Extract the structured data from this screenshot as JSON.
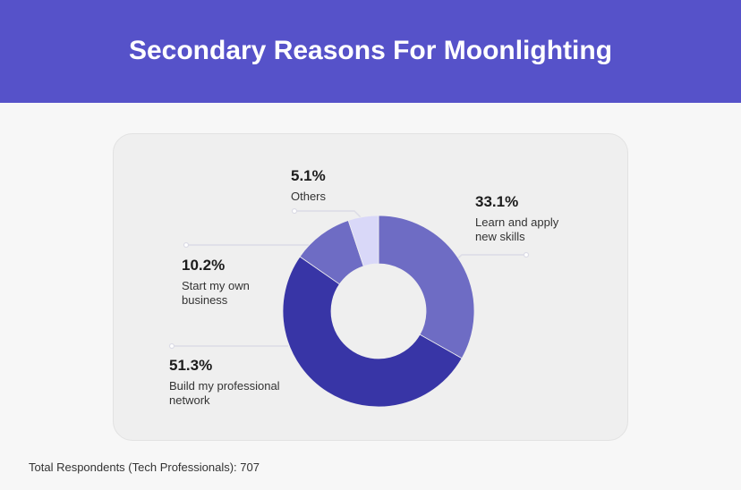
{
  "header": {
    "title": "Secondary Reasons For Moonlighting"
  },
  "chart_data": {
    "type": "donut",
    "title": "Secondary Reasons For Moonlighting",
    "slices": [
      {
        "label": "Learn and apply new skills",
        "value": 33.1,
        "display": "33.1%",
        "color": "#6e6cc4"
      },
      {
        "label": "Build my professional network",
        "value": 51.3,
        "display": "51.3%",
        "color": "#3835a6"
      },
      {
        "label": "Start my own business",
        "value": 10.2,
        "display": "10.2%",
        "color": "#6e6cc4"
      },
      {
        "label": "Others",
        "value": 5.1,
        "display": "5.1%",
        "color": "#d9d8f8"
      }
    ],
    "start_angle": "top",
    "direction": "clockwise"
  },
  "footer": {
    "note": "Total Respondents (Tech Professionals): 707"
  },
  "colors": {
    "header_bg": "#5652c9",
    "card_bg": "#efefef",
    "page_bg": "#f7f7f7"
  }
}
